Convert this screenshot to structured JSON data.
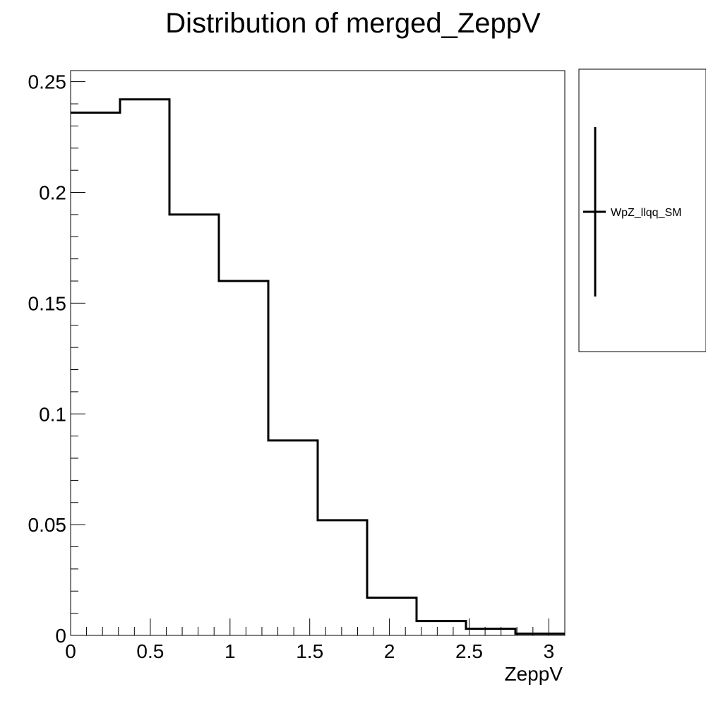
{
  "chart_data": {
    "type": "bar",
    "style": "step-histogram",
    "title": "Distribution of merged_ZeppV",
    "xlabel": "ZeppV",
    "ylabel": "",
    "xlim": [
      0,
      3.1
    ],
    "ylim": [
      0,
      0.255
    ],
    "bin_edges": [
      0,
      0.31,
      0.62,
      0.93,
      1.24,
      1.55,
      1.86,
      2.17,
      2.48,
      2.79,
      3.1
    ],
    "values": [
      0.236,
      0.242,
      0.19,
      0.16,
      0.088,
      0.052,
      0.017,
      0.0065,
      0.003,
      0.0008
    ],
    "x_ticks": [
      {
        "value": 0,
        "label": "0"
      },
      {
        "value": 0.5,
        "label": "0.5"
      },
      {
        "value": 1,
        "label": "1"
      },
      {
        "value": 1.5,
        "label": "1.5"
      },
      {
        "value": 2,
        "label": "2"
      },
      {
        "value": 2.5,
        "label": "2.5"
      },
      {
        "value": 3,
        "label": "3"
      }
    ],
    "y_ticks": [
      {
        "value": 0,
        "label": "0"
      },
      {
        "value": 0.05,
        "label": "0.05"
      },
      {
        "value": 0.1,
        "label": "0.1"
      },
      {
        "value": 0.15,
        "label": "0.15"
      },
      {
        "value": 0.2,
        "label": "0.2"
      },
      {
        "value": 0.25,
        "label": "0.25"
      }
    ],
    "grid": false,
    "legend": {
      "position": "right",
      "entries": [
        {
          "name": "WpZ_llqq_SM",
          "color": "#000000"
        }
      ]
    },
    "line_color": "#000000"
  }
}
